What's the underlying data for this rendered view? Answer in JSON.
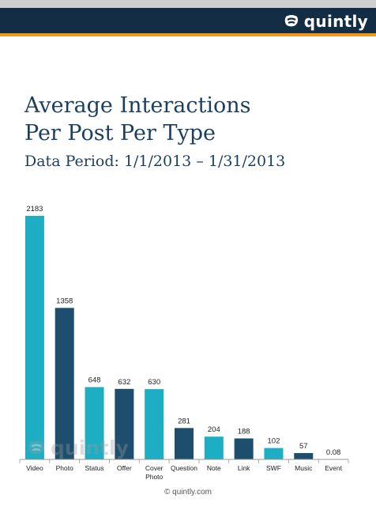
{
  "header": {
    "brand": "quintly",
    "colors": {
      "bar": "#132e44",
      "accent": "#f39519"
    }
  },
  "title_lines": [
    "Average Interactions",
    "Per Post Per Type"
  ],
  "subtitle": "Data Period: 1/1/2013 – 1/31/2013",
  "chart_data": {
    "type": "bar",
    "categories": [
      "Video",
      "Photo",
      "Status",
      "Offer",
      "Cover Photo",
      "Question",
      "Note",
      "Link",
      "SWF",
      "Music",
      "Event"
    ],
    "values": [
      2183,
      1358,
      648,
      632,
      630,
      281,
      204,
      188,
      102,
      57,
      0.08
    ],
    "value_labels": [
      "2183",
      "1358",
      "648",
      "632",
      "630",
      "281",
      "204",
      "188",
      "102",
      "57",
      "0.08"
    ],
    "colors": [
      "#1eaec3",
      "#1d4e6e",
      "#1eaec3",
      "#1d4e6e",
      "#1eaec3",
      "#1d4e6e",
      "#1eaec3",
      "#1d4e6e",
      "#1eaec3",
      "#1d4e6e",
      "#1eaec3"
    ],
    "ylim": [
      0,
      2183
    ],
    "grid": false,
    "legend": "none"
  },
  "watermark": "quintly",
  "footer": "© quintly.com"
}
